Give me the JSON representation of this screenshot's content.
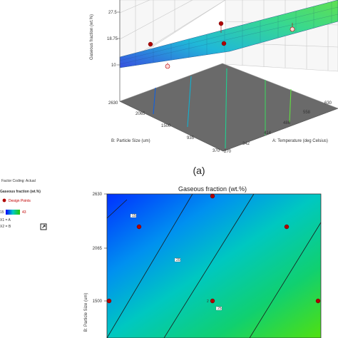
{
  "panel_label": "(a)",
  "factor_coding": "Factor Coding: Actual",
  "legend": {
    "response_title": "Gaseous fraction (wt.%)",
    "design_points_label": "Design Points",
    "range_low": "15",
    "range_high": "43",
    "x1_label": "X1 = A",
    "x2_label": "X2 = B"
  },
  "colors": {
    "design_point": "#b00000",
    "ramp_low": "#0000ff",
    "ramp_mid": "#00c8c8",
    "ramp_high": "#28c800"
  },
  "icons": {
    "export": "export-icon"
  },
  "chart_data": [
    {
      "type": "surface",
      "zlabel": "Gaseous fraction (wt.%)",
      "xlabel": "A: Temperature (deg Celsius)",
      "ylabel": "B: Particle Size (um)",
      "z_ticks": [
        "27.5",
        "18.75",
        "10"
      ],
      "x_ticks": [
        "270",
        "342",
        "414",
        "486",
        "558",
        "630"
      ],
      "y_ticks": [
        "2630",
        "2065",
        "1500",
        "935",
        "370"
      ],
      "design_points": [
        {
          "x": 450,
          "y": 1500,
          "z": 22
        },
        {
          "x": 270,
          "y": 2630,
          "z": 17
        },
        {
          "x": 630,
          "y": 2630,
          "z": 22
        },
        {
          "x": 270,
          "y": 370,
          "z": 10
        },
        {
          "x": 630,
          "y": 370,
          "z": 29
        }
      ]
    },
    {
      "type": "contour",
      "title": "Gaseous fraction (wt.%)",
      "ylabel": "B: Particle Size (um)",
      "y_ticks": [
        "2630",
        "2065",
        "1500"
      ],
      "contour_labels": [
        "15",
        "20",
        "25"
      ],
      "point_count_label": "2",
      "design_points": [
        {
          "x": 450,
          "y": 2630
        },
        {
          "x": 300,
          "y": 2400
        },
        {
          "x": 600,
          "y": 2400
        },
        {
          "x": 270,
          "y": 1500
        },
        {
          "x": 450,
          "y": 1500
        },
        {
          "x": 630,
          "y": 1500
        }
      ]
    }
  ]
}
